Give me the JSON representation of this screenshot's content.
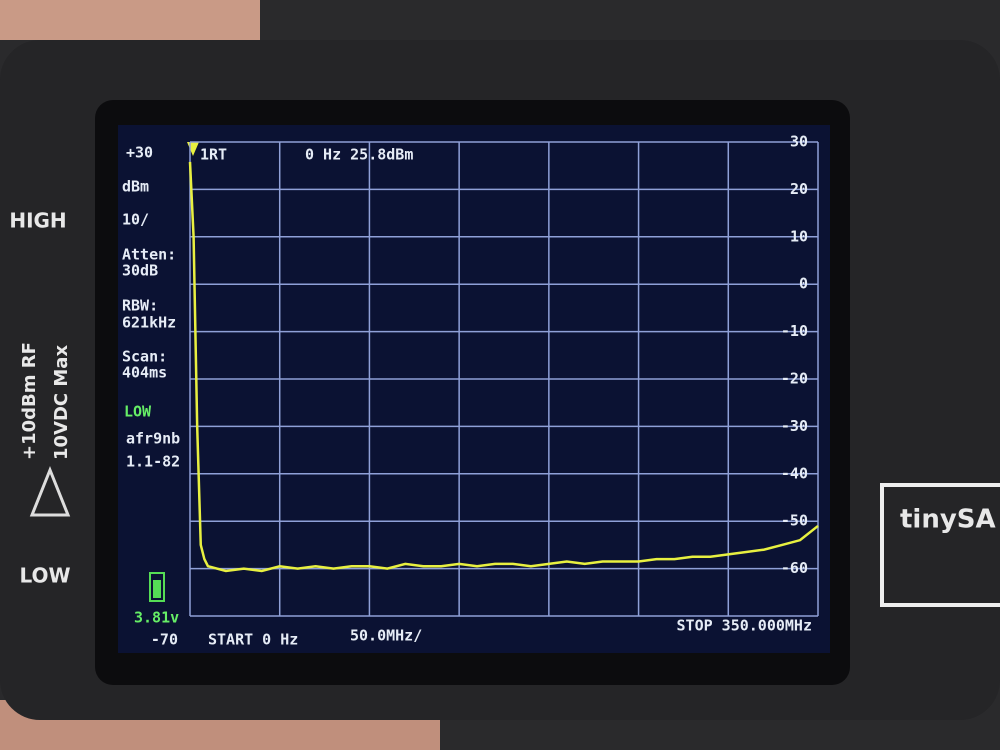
{
  "device": {
    "high_label": "HIGH",
    "low_label": "LOW",
    "rf_limit": "+10dBm RF",
    "dc_limit": "10VDC Max",
    "brand": "tinySA"
  },
  "sidebar": {
    "ref_level": "+30",
    "unit": "dBm",
    "scale": "10/",
    "atten_label": "Atten:",
    "atten_value": "30dB",
    "rbw_label": "RBW:",
    "rbw_value": "621kHz",
    "scan_label": "Scan:",
    "scan_value": "404ms",
    "mode": "LOW",
    "build": "afr9nb",
    "version": "1.1-82",
    "battery": "3.81v"
  },
  "chart_data": {
    "type": "line",
    "marker": "1RT",
    "marker_readout": "0 Hz 25.8dBm",
    "start_label": "START 0 Hz",
    "div_label": "50.0MHz/",
    "stop_label": "STOP 350.000MHz",
    "x": [
      0,
      2,
      4,
      6,
      8,
      10,
      20,
      30,
      40,
      50,
      60,
      70,
      80,
      90,
      100,
      110,
      120,
      130,
      140,
      150,
      160,
      170,
      180,
      190,
      200,
      210,
      220,
      230,
      240,
      250,
      260,
      270,
      280,
      290,
      300,
      310,
      320,
      330,
      340,
      350
    ],
    "series": [
      {
        "name": "trace",
        "color": "#e8f040",
        "values": [
          25.8,
          10,
          -30,
          -55,
          -58,
          -59.5,
          -60.5,
          -60,
          -60.5,
          -59.5,
          -60,
          -59.5,
          -60,
          -59.5,
          -59.5,
          -60,
          -59,
          -59.5,
          -59.5,
          -59,
          -59.5,
          -59,
          -59,
          -59.5,
          -59,
          -58.5,
          -59,
          -58.5,
          -58.5,
          -58.5,
          -58,
          -58,
          -57.5,
          -57.5,
          -57,
          -56.5,
          -56,
          -55,
          -54,
          -51
        ]
      }
    ],
    "xlim": [
      0,
      350
    ],
    "xticks": [
      0,
      50,
      100,
      150,
      200,
      250,
      300,
      350
    ],
    "ylim": [
      -70,
      30
    ],
    "yticks": [
      30,
      20,
      10,
      0,
      -10,
      -20,
      -30,
      -40,
      -50,
      -60,
      -70
    ],
    "grid": true
  }
}
